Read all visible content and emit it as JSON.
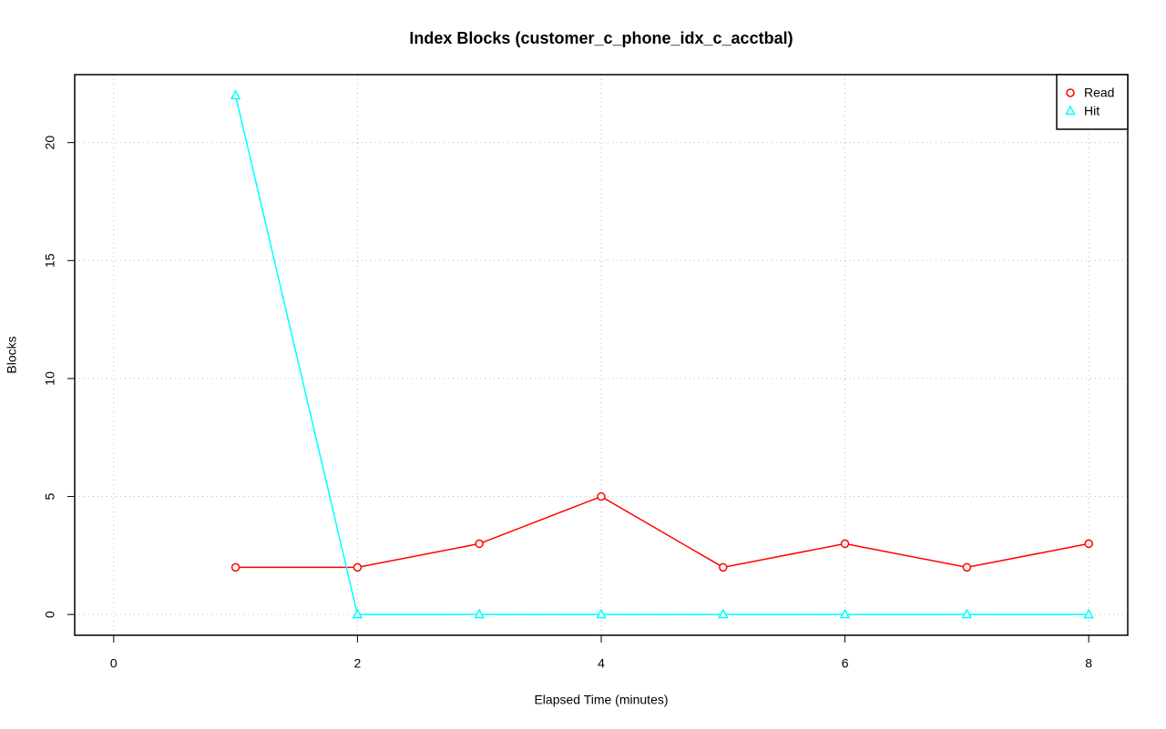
{
  "chart_data": {
    "type": "line",
    "title": "Index Blocks (customer_c_phone_idx_c_acctbal)",
    "x_label": "Elapsed Time (minutes)",
    "y_label": "Blocks",
    "x": [
      1,
      2,
      3,
      4,
      5,
      6,
      7,
      8
    ],
    "series": [
      {
        "name": "Read",
        "color": "#ff0000",
        "marker": "circle",
        "values": [
          2,
          2,
          3,
          5,
          2,
          3,
          2,
          3
        ]
      },
      {
        "name": "Hit",
        "color": "#00ffff",
        "marker": "triangle",
        "values": [
          22,
          0,
          0,
          0,
          0,
          0,
          0,
          0
        ]
      }
    ],
    "xlim": [
      -0.32,
      8.32
    ],
    "xticks": [
      0,
      2,
      4,
      6,
      8
    ],
    "ylim": [
      -0.88,
      22.88
    ],
    "yticks": [
      0,
      5,
      10,
      15,
      20
    ],
    "grid": true,
    "legend": "top-right"
  }
}
